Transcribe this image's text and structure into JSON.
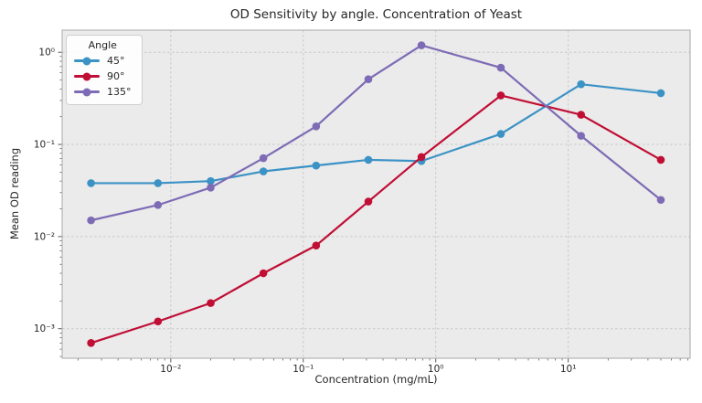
{
  "chart_data": {
    "type": "line",
    "title": "OD Sensitivity by angle. Concentration of Yeast",
    "xlabel": "Concentration (mg/mL)",
    "ylabel": "Mean OD reading",
    "x_scale": "log",
    "y_scale": "log",
    "grid": true,
    "grid_style": "dashed",
    "x": [
      0.0025,
      0.008,
      0.02,
      0.05,
      0.125,
      0.31,
      0.78,
      3.1,
      12.5,
      50
    ],
    "series": [
      {
        "name": "45°",
        "color": "#3b92c5",
        "values": [
          0.038,
          0.038,
          0.04,
          0.051,
          0.059,
          0.068,
          0.066,
          0.13,
          0.45,
          0.36
        ]
      },
      {
        "name": "90°",
        "color": "#c00e35",
        "values": [
          0.0007,
          0.0012,
          0.0019,
          0.004,
          0.008,
          0.024,
          0.073,
          0.34,
          0.21,
          0.068
        ]
      },
      {
        "name": "135°",
        "color": "#7d6bb5",
        "values": [
          0.015,
          0.022,
          0.034,
          0.071,
          0.157,
          0.51,
          1.19,
          0.68,
          0.124,
          0.025
        ]
      }
    ],
    "legend": {
      "title": "Angle",
      "position": "upper left"
    },
    "x_ticks": {
      "values": [
        0.01,
        0.1,
        1,
        10
      ],
      "labels": [
        "10⁻²",
        "10⁻¹",
        "10⁰",
        "10¹"
      ]
    },
    "y_ticks": {
      "values": [
        1,
        0.1,
        0.01,
        0.001
      ],
      "labels": [
        "10⁰",
        "10⁻¹",
        "10⁻²",
        "10⁻³"
      ]
    },
    "xlim_log": [
      -2.82,
      1.92
    ],
    "ylim_log": [
      -3.32,
      0.24
    ],
    "colors": {
      "figure_bg": "#ffffff",
      "plot_bg": "#ebebeb",
      "grid": "#c8c8c8",
      "spine": "#b4b4b4",
      "tick": "#444444",
      "text": "#262626"
    }
  }
}
